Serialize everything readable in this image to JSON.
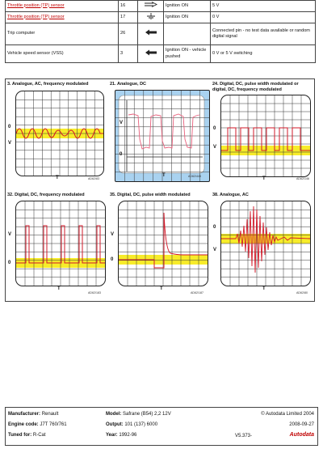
{
  "table": {
    "rows": [
      {
        "name": "Throttle position (TP) sensor",
        "pin": "16",
        "icon": "double-arrow-right-icon",
        "cond": "Ignition ON",
        "value": "5 V",
        "red": true
      },
      {
        "name": "Throttle position (TP) sensor",
        "pin": "17",
        "icon": "ground-symbol-icon",
        "cond": "Ignition ON",
        "value": "0 V",
        "red": true
      },
      {
        "name": "Trip computer",
        "pin": "26",
        "icon": "arrow-left-icon",
        "cond": "",
        "value": "Connected pin - no test data available or random digital signal",
        "red": false
      },
      {
        "name": "Vehicle speed sensor (VSS)",
        "pin": "3",
        "icon": "arrow-left-icon",
        "cond": "Ignition ON - vehicle pushed",
        "value": "0 V or 5 V switching",
        "red": false
      }
    ]
  },
  "panels": [
    {
      "title": "3. Analogue, AC, frequency modulated",
      "code": "AD62/83",
      "v": "V",
      "t": "T",
      "zero": "0"
    },
    {
      "title": "21. Analogue, DC",
      "code": "AD62/445",
      "v": "V",
      "t": "T",
      "zero": "0"
    },
    {
      "title": "24. Digital, DC, pulse width modulated or digital, DC, frequency modulated",
      "code": "AD62/146",
      "v": "V",
      "t": "T",
      "zero": "0"
    },
    {
      "title": "32. Digital, DC, frequency modulated",
      "code": "AD62/183",
      "v": "V",
      "t": "T",
      "zero": "0"
    },
    {
      "title": "35. Digital, DC, pulse width modulated",
      "code": "AD62/187",
      "v": "V",
      "t": "T",
      "zero": "0"
    },
    {
      "title": "38. Analogue, AC",
      "code": "AD62/80",
      "v": "V",
      "t": "T",
      "zero": "0"
    }
  ],
  "colors": {
    "trace": "#d21a2a",
    "band": "#f7ec2a",
    "blue": "#a9d2f0",
    "pink": "#e8607c"
  },
  "footer": {
    "manufacturer_label": "Manufacturer:",
    "manufacturer": "Renault",
    "engine_label": "Engine code:",
    "engine": "J7T 760/761",
    "tuned_label": "Tuned for:",
    "tuned": "R-Cat",
    "model_label": "Model:",
    "model": "Safrane (B54) 2,2 12V",
    "output_label": "Output:",
    "output": "101 (137) 6000",
    "year_label": "Year:",
    "year": "1992-96",
    "copyright": "© Autodata Limited 2004",
    "date": "2008-09-27",
    "version": "V5.373-",
    "brand": "Autodata"
  }
}
